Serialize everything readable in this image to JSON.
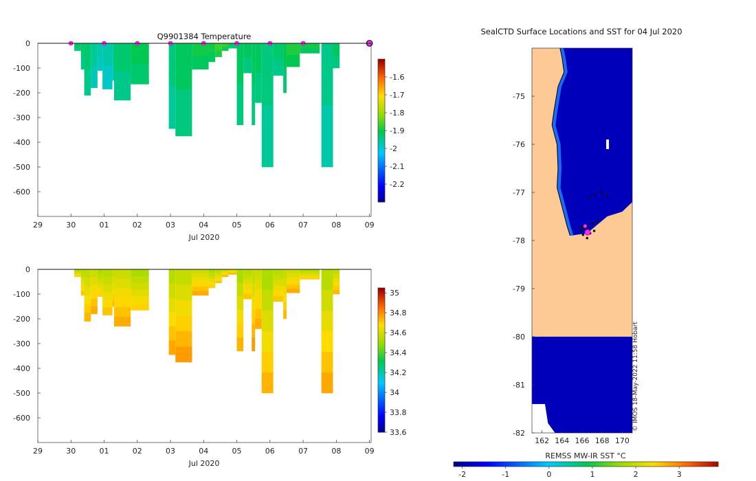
{
  "chart_data": [
    {
      "type": "heatmap",
      "title": "Q9901384  Temperature",
      "xlabel": "Jul 2020",
      "ylabel": "",
      "xticks": [
        "29",
        "30",
        "01",
        "02",
        "03",
        "04",
        "05",
        "06",
        "07",
        "08",
        "09"
      ],
      "yticks": [
        0,
        -100,
        -200,
        -300,
        -400,
        -500,
        -600
      ],
      "ylim": [
        -700,
        0
      ],
      "xlim_days": [
        0,
        10.05
      ],
      "colorbar": {
        "ticks": [
          "-1.6",
          "-1.7",
          "-1.8",
          "-1.9",
          "-2",
          "-2.1",
          "-2.2"
        ],
        "range": [
          -2.3,
          -1.5
        ]
      },
      "surface_markers_days": [
        1,
        2,
        3,
        4,
        5,
        6,
        7,
        8
      ],
      "end_marker_day": 10.0,
      "profiles": [
        {
          "t0": 1.1,
          "t1": 1.3,
          "depth": 30,
          "temp": -1.9
        },
        {
          "t0": 1.3,
          "t1": 1.4,
          "depth": 105,
          "temp": -1.92
        },
        {
          "t0": 1.4,
          "t1": 1.6,
          "depth": 210,
          "temp": -1.93
        },
        {
          "t0": 1.6,
          "t1": 1.8,
          "depth": 180,
          "temp": -1.94
        },
        {
          "t0": 1.8,
          "t1": 1.95,
          "depth": 110,
          "temp": -1.96
        },
        {
          "t0": 1.95,
          "t1": 2.25,
          "depth": 185,
          "temp": -1.97
        },
        {
          "t0": 2.25,
          "t1": 2.3,
          "depth": 150,
          "temp": -1.94
        },
        {
          "t0": 2.3,
          "t1": 2.8,
          "depth": 230,
          "temp": -1.92
        },
        {
          "t0": 2.8,
          "t1": 3.35,
          "depth": 165,
          "temp": -1.91
        },
        {
          "t0": 3.95,
          "t1": 4.15,
          "depth": 345,
          "temp": -1.92
        },
        {
          "t0": 4.15,
          "t1": 4.65,
          "depth": 375,
          "temp": -1.91
        },
        {
          "t0": 4.65,
          "t1": 5.15,
          "depth": 105,
          "temp": -1.9
        },
        {
          "t0": 5.15,
          "t1": 5.35,
          "depth": 75,
          "temp": -1.88
        },
        {
          "t0": 5.35,
          "t1": 5.55,
          "depth": 55,
          "temp": -1.86
        },
        {
          "t0": 5.55,
          "t1": 5.75,
          "depth": 30,
          "temp": -1.88
        },
        {
          "t0": 5.75,
          "t1": 6.0,
          "depth": 20,
          "temp": -1.9
        },
        {
          "t0": 6.0,
          "t1": 6.2,
          "depth": 330,
          "temp": -1.91
        },
        {
          "t0": 6.2,
          "t1": 6.45,
          "depth": 120,
          "temp": -1.92
        },
        {
          "t0": 6.45,
          "t1": 6.55,
          "depth": 330,
          "temp": -1.9
        },
        {
          "t0": 6.55,
          "t1": 6.75,
          "depth": 240,
          "temp": -1.91
        },
        {
          "t0": 6.75,
          "t1": 7.1,
          "depth": 500,
          "temp": -1.94
        },
        {
          "t0": 7.1,
          "t1": 7.4,
          "depth": 130,
          "temp": -1.91
        },
        {
          "t0": 7.4,
          "t1": 7.5,
          "depth": 200,
          "temp": -1.9
        },
        {
          "t0": 7.5,
          "t1": 7.9,
          "depth": 95,
          "temp": -1.89
        },
        {
          "t0": 7.9,
          "t1": 8.5,
          "depth": 40,
          "temp": -1.88
        },
        {
          "t0": 8.55,
          "t1": 8.9,
          "depth": 500,
          "temp": -1.94
        },
        {
          "t0": 8.9,
          "t1": 9.1,
          "depth": 100,
          "temp": -1.92
        }
      ]
    },
    {
      "type": "heatmap",
      "title": "",
      "xlabel": "Jul 2020",
      "ylabel": "",
      "xticks": [
        "29",
        "30",
        "01",
        "02",
        "03",
        "04",
        "05",
        "06",
        "07",
        "08",
        "09"
      ],
      "yticks": [
        0,
        -100,
        -200,
        -300,
        -400,
        -500,
        -600
      ],
      "ylim": [
        -700,
        0
      ],
      "xlim_days": [
        0,
        10.05
      ],
      "colorbar": {
        "ticks": [
          "35",
          "34.8",
          "34.6",
          "34.4",
          "34.2",
          "34",
          "33.8",
          "33.6"
        ],
        "range": [
          33.6,
          35.05
        ]
      },
      "profiles_same_as": "temperature",
      "salinity_surface": 34.55,
      "salinity_deep": 34.75
    },
    {
      "type": "heatmap",
      "title": "SealCTD Surface Locations and SST for 04 Jul 2020",
      "xlabel": "",
      "ylabel": "",
      "xticks": [
        "162",
        "164",
        "166",
        "168",
        "170"
      ],
      "yticks": [
        "-75",
        "-76",
        "-77",
        "-78",
        "-79",
        "-80",
        "-81",
        "-82"
      ],
      "xlim": [
        161.0,
        171.0
      ],
      "ylim": [
        -82,
        -74.0
      ],
      "colorbar": {
        "label": "REMSS MW-IR SST °C",
        "ticks": [
          "-2",
          "-1",
          "0",
          "1",
          "2",
          "3"
        ],
        "range": [
          -2.2,
          3.9
        ]
      },
      "sst_value_ocean": -1.9,
      "land_lon_boundary": [
        [
          -74.0,
          163.8
        ],
        [
          -74.2,
          164.0
        ],
        [
          -74.5,
          164.2
        ],
        [
          -74.8,
          163.6
        ],
        [
          -75.3,
          163.2
        ],
        [
          -75.6,
          163.0
        ],
        [
          -76.0,
          163.5
        ],
        [
          -76.5,
          163.6
        ],
        [
          -76.9,
          163.5
        ],
        [
          -77.3,
          164.0
        ],
        [
          -77.7,
          164.5
        ],
        [
          -77.9,
          164.8
        ]
      ],
      "credit": "© IMOS 18-May-2022 11:58 Hobart"
    }
  ]
}
